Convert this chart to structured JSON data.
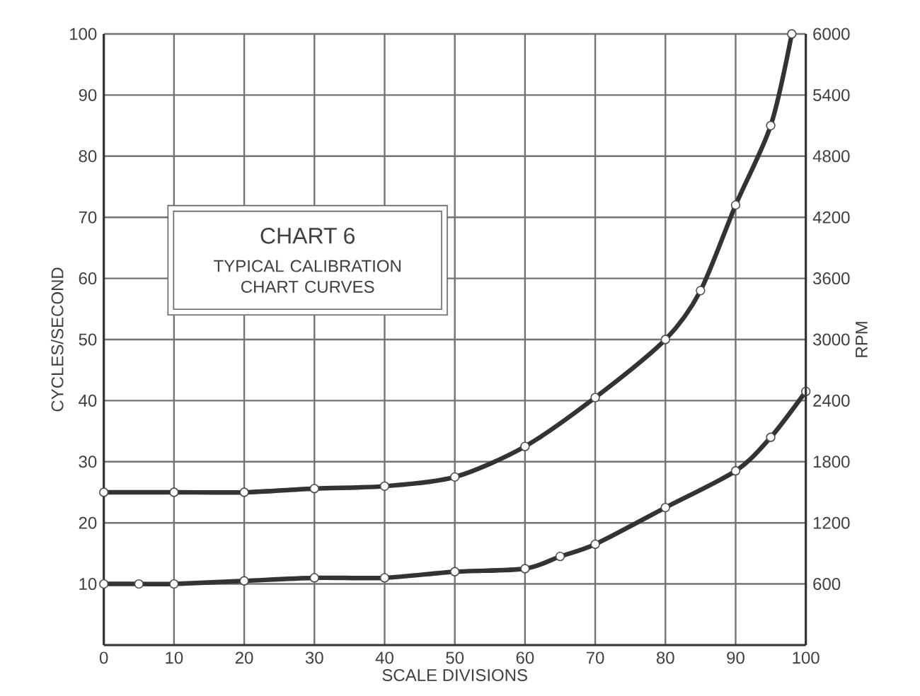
{
  "chart_data": {
    "type": "line",
    "title": "CHART 6",
    "subtitle": "TYPICAL CALIBRATION CHART CURVES",
    "xlabel": "SCALE DIVISIONS",
    "ylabel": "CYCLES/SECOND",
    "y2label": "RPM",
    "series": [
      {
        "color": "#333333",
        "x": [
          0,
          10,
          20,
          30,
          40,
          50,
          60,
          70,
          80,
          85,
          90,
          95,
          98
        ],
        "values": [
          25,
          25,
          25,
          25.6,
          26,
          27.5,
          32.5,
          40.5,
          50,
          58,
          72,
          85,
          100
        ]
      },
      {
        "color": "#333333",
        "x": [
          0,
          5,
          10,
          20,
          30,
          40,
          50,
          60,
          65,
          70,
          80,
          90,
          95,
          100
        ],
        "values": [
          10,
          10,
          10,
          10.5,
          11,
          11,
          12,
          12.5,
          14.5,
          16.5,
          22.5,
          28.5,
          34,
          41.5
        ]
      }
    ],
    "xlim": [
      0,
      100
    ],
    "xticks": [
      0,
      10,
      20,
      30,
      40,
      50,
      60,
      70,
      80,
      90,
      100
    ],
    "ylim": [
      0,
      100
    ],
    "yticks": [
      10,
      20,
      30,
      40,
      50,
      60,
      70,
      80,
      90,
      100
    ],
    "y2lim": [
      0,
      6000
    ],
    "y2ticks": [
      600,
      1200,
      1800,
      2400,
      3000,
      3600,
      4200,
      4800,
      5400,
      6000
    ],
    "grid": true,
    "marker": "circle",
    "line_style": "solid"
  }
}
